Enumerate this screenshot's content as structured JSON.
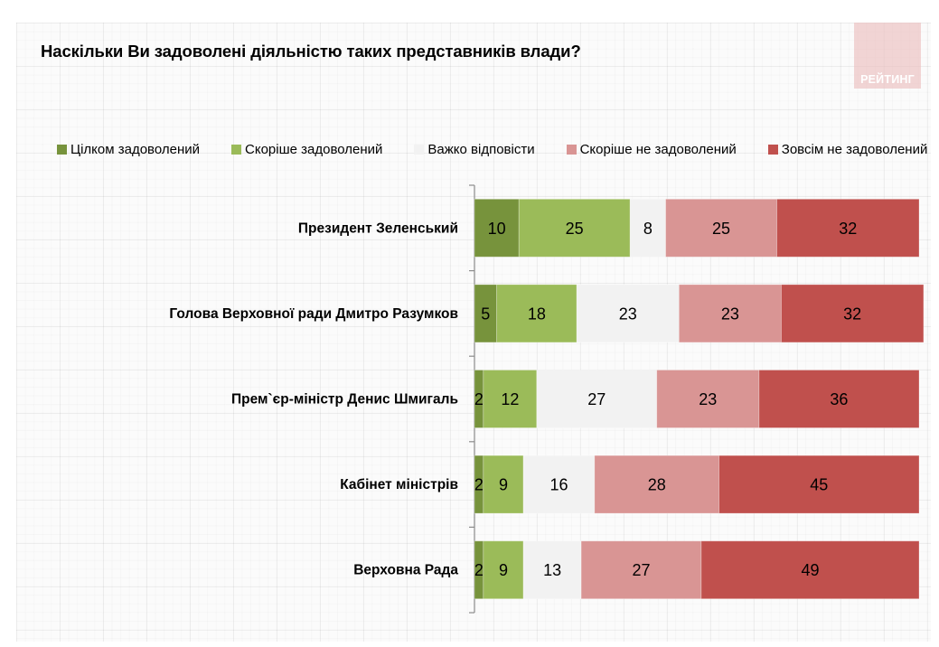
{
  "title": "Наскільки Ви задоволені діяльністю таких представників влади?",
  "logo": {
    "text": "РЕЙТИНГ"
  },
  "chart_data": {
    "type": "bar",
    "orientation": "horizontal",
    "stacked": true,
    "title": "Наскільки Ви задоволені діяльністю таких представників влади?",
    "xlabel": "",
    "ylabel": "",
    "xlim": [
      0,
      100
    ],
    "grid": false,
    "legend_position": "top",
    "categories": [
      "Президент Зеленський",
      "Голова Верховної ради Дмитро Разумков",
      "Прем`єр-міністр Денис Шмигаль",
      "Кабінет міністрів",
      "Верховна Рада"
    ],
    "series": [
      {
        "name": "Цілком задоволений",
        "color": "#77933c",
        "values": [
          10,
          5,
          2,
          2,
          2
        ]
      },
      {
        "name": "Скоріше задоволений",
        "color": "#9bbb59",
        "values": [
          25,
          18,
          12,
          9,
          9
        ]
      },
      {
        "name": "Важко відповісти",
        "color": "#f2f2f2",
        "values": [
          8,
          23,
          27,
          16,
          13
        ]
      },
      {
        "name": "Скоріше не задоволений",
        "color": "#d99594",
        "values": [
          25,
          23,
          23,
          28,
          27
        ]
      },
      {
        "name": "Зовсім не задоволений",
        "color": "#c0504d",
        "values": [
          32,
          32,
          36,
          45,
          49
        ]
      }
    ]
  }
}
